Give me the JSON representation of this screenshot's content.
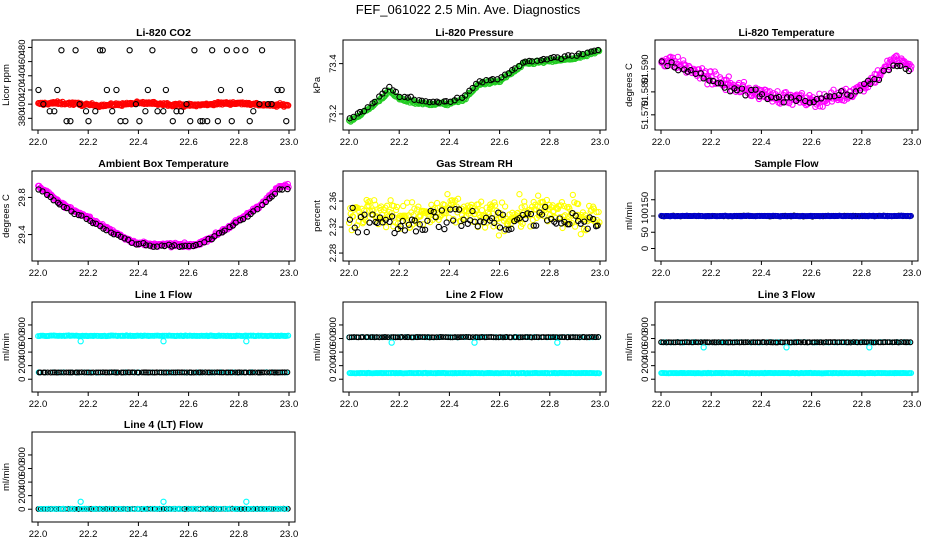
{
  "figure_title": "FEF_061022  2.5 Min. Ave. Diagnostics",
  "colors": {
    "red": "#ff0000",
    "black": "#000000",
    "green": "#22cc22",
    "magenta": "#ff00ff",
    "yellow": "#ffff00",
    "blue": "#0000cc",
    "cyan": "#00ffff"
  },
  "chart_data": [
    {
      "type": "scatter",
      "title": "Li-820 CO2",
      "xlabel": "",
      "ylabel": "Licor ppm",
      "xlim": [
        22.0,
        23.0
      ],
      "ylim": [
        372,
        482
      ],
      "xticks": [
        "22.0",
        "22.2",
        "22.4",
        "22.6",
        "22.8",
        "23.0"
      ],
      "yticks": [
        {
          "v": 380,
          "l": "380"
        },
        {
          "v": 400,
          "l": "400"
        },
        {
          "v": 420,
          "l": "420"
        },
        {
          "v": 440,
          "l": "440"
        },
        {
          "v": 460,
          "l": "460"
        },
        {
          "v": 480,
          "l": "480"
        }
      ],
      "series": [
        {
          "name": "CO2 (red)",
          "color": "#ff0000",
          "kind": "band",
          "base": 400,
          "noise": 2,
          "wave": 1.5,
          "n": 300,
          "size": 2.6
        },
        {
          "name": "CO2 (black, scattered)",
          "color": "#000000",
          "kind": "levels",
          "levels": [
            376,
            390,
            400,
            420,
            476
          ],
          "n": 55,
          "size": 2.6
        }
      ]
    },
    {
      "type": "scatter",
      "title": "Li-820 Pressure",
      "xlabel": "",
      "ylabel": "kPa",
      "xlim": [
        22.0,
        23.0
      ],
      "ylim": [
        73.16,
        73.47
      ],
      "xticks": [
        "22.0",
        "22.2",
        "22.4",
        "22.6",
        "22.8",
        "23.0"
      ],
      "yticks": [
        {
          "v": 73.2,
          "l": "73.2"
        },
        {
          "v": 73.4,
          "l": "73.4"
        }
      ],
      "series": [
        {
          "name": "Pressure (green)",
          "color": "#22cc22",
          "kind": "curve",
          "pts": [
            [
              22.0,
              73.17
            ],
            [
              22.08,
              73.22
            ],
            [
              22.16,
              73.29
            ],
            [
              22.2,
              73.26
            ],
            [
              22.3,
              73.24
            ],
            [
              22.4,
              73.24
            ],
            [
              22.46,
              73.26
            ],
            [
              22.52,
              73.32
            ],
            [
              22.6,
              73.33
            ],
            [
              22.7,
              73.4
            ],
            [
              22.8,
              73.41
            ],
            [
              22.9,
              73.42
            ],
            [
              23.0,
              73.45
            ]
          ],
          "noise": 0.006,
          "n": 240,
          "size": 2.6
        },
        {
          "name": "Pressure (black)",
          "color": "#000000",
          "kind": "curve",
          "pts": [
            [
              22.0,
              73.18
            ],
            [
              22.08,
              73.23
            ],
            [
              22.16,
              73.31
            ],
            [
              22.2,
              73.27
            ],
            [
              22.3,
              73.25
            ],
            [
              22.4,
              73.25
            ],
            [
              22.46,
              73.27
            ],
            [
              22.52,
              73.33
            ],
            [
              22.6,
              73.34
            ],
            [
              22.7,
              73.41
            ],
            [
              22.8,
              73.42
            ],
            [
              22.9,
              73.43
            ],
            [
              23.0,
              73.46
            ]
          ],
          "noise": 0.006,
          "n": 70,
          "size": 2.6
        }
      ]
    },
    {
      "type": "scatter",
      "title": "Li-820 Temperature",
      "xlabel": "",
      "ylabel": "degrees C",
      "xlim": [
        22.0,
        23.0
      ],
      "ylim": [
        51.566,
        51.6
      ],
      "xticks": [
        "22.0",
        "22.2",
        "22.4",
        "22.6",
        "22.8",
        "23.0"
      ],
      "yticks": [
        {
          "v": 51.57,
          "l": "51.570"
        },
        {
          "v": 51.58,
          "l": "51.580"
        },
        {
          "v": 51.59,
          "l": "51.590"
        }
      ],
      "series": [
        {
          "name": "Temperature (magenta)",
          "color": "#ff00ff",
          "kind": "curve",
          "pts": [
            [
              22.0,
              51.594
            ],
            [
              22.05,
              51.593
            ],
            [
              22.15,
              51.588
            ],
            [
              22.3,
              51.582
            ],
            [
              22.45,
              51.578
            ],
            [
              22.6,
              51.576
            ],
            [
              22.75,
              51.579
            ],
            [
              22.85,
              51.586
            ],
            [
              22.93,
              51.594
            ],
            [
              23.0,
              51.591
            ]
          ],
          "noise": 0.0028,
          "n": 300,
          "size": 2.6
        },
        {
          "name": "Temperature (black)",
          "color": "#000000",
          "kind": "curve",
          "pts": [
            [
              22.0,
              51.593
            ],
            [
              22.05,
              51.592
            ],
            [
              22.15,
              51.587
            ],
            [
              22.3,
              51.581
            ],
            [
              22.45,
              51.578
            ],
            [
              22.6,
              51.576
            ],
            [
              22.75,
              51.579
            ],
            [
              22.85,
              51.585
            ],
            [
              22.93,
              51.592
            ],
            [
              23.0,
              51.59
            ]
          ],
          "noise": 0.002,
          "n": 60,
          "size": 2.6
        }
      ]
    },
    {
      "type": "scatter",
      "title": "Ambient Box Temperature",
      "xlabel": "",
      "ylabel": "degrees C",
      "xlim": [
        22.0,
        23.0
      ],
      "ylim": [
        29.18,
        30.02
      ],
      "xticks": [
        "22.0",
        "22.2",
        "22.4",
        "22.6",
        "22.8",
        "23.0"
      ],
      "yticks": [
        {
          "v": 29.4,
          "l": "29.4"
        },
        {
          "v": 29.8,
          "l": "29.8"
        }
      ],
      "series": [
        {
          "name": "Box temp (magenta)",
          "color": "#ff00ff",
          "kind": "curve",
          "pts": [
            [
              22.0,
              29.93
            ],
            [
              22.1,
              29.72
            ],
            [
              22.2,
              29.58
            ],
            [
              22.3,
              29.43
            ],
            [
              22.38,
              29.32
            ],
            [
              22.45,
              29.29
            ],
            [
              22.55,
              29.29
            ],
            [
              22.62,
              29.28
            ],
            [
              22.7,
              29.38
            ],
            [
              22.8,
              29.55
            ],
            [
              22.9,
              29.75
            ],
            [
              22.96,
              29.91
            ],
            [
              23.0,
              29.93
            ]
          ],
          "noise": 0.02,
          "n": 300,
          "size": 2.6
        },
        {
          "name": "Box temp (black)",
          "color": "#000000",
          "kind": "curve",
          "pts": [
            [
              22.0,
              29.9
            ],
            [
              22.1,
              29.7
            ],
            [
              22.2,
              29.56
            ],
            [
              22.3,
              29.42
            ],
            [
              22.38,
              29.31
            ],
            [
              22.45,
              29.28
            ],
            [
              22.55,
              29.28
            ],
            [
              22.62,
              29.27
            ],
            [
              22.7,
              29.37
            ],
            [
              22.8,
              29.54
            ],
            [
              22.9,
              29.73
            ],
            [
              22.96,
              29.89
            ],
            [
              23.0,
              29.9
            ]
          ],
          "noise": 0.012,
          "n": 70,
          "size": 2.6
        }
      ]
    },
    {
      "type": "scatter",
      "title": "Gas Stream RH",
      "xlabel": "",
      "ylabel": "percent",
      "xlim": [
        22.0,
        23.0
      ],
      "ylim": [
        2.277,
        2.397
      ],
      "xticks": [
        "22.0",
        "22.2",
        "22.4",
        "22.6",
        "22.8",
        "23.0"
      ],
      "yticks": [
        {
          "v": 2.28,
          "l": "2.28"
        },
        {
          "v": 2.32,
          "l": "2.32"
        },
        {
          "v": 2.36,
          "l": "2.36"
        }
      ],
      "series": [
        {
          "name": "RH (yellow)",
          "color": "#ffff00",
          "kind": "band",
          "base": 2.34,
          "noise": 0.022,
          "wave": 0.004,
          "n": 320,
          "size": 2.6
        },
        {
          "name": "RH (black)",
          "color": "#000000",
          "kind": "band",
          "base": 2.33,
          "noise": 0.018,
          "wave": 0.003,
          "n": 90,
          "size": 2.6
        }
      ]
    },
    {
      "type": "scatter",
      "title": "Sample Flow",
      "xlabel": "",
      "ylabel": "ml/min",
      "xlim": [
        22.0,
        23.0
      ],
      "ylim": [
        -20,
        220
      ],
      "xticks": [
        "22.0",
        "22.2",
        "22.4",
        "22.6",
        "22.8",
        "23.0"
      ],
      "yticks": [
        {
          "v": 0,
          "l": "0"
        },
        {
          "v": 50,
          "l": "50"
        },
        {
          "v": 100,
          "l": "100"
        },
        {
          "v": 150,
          "l": "150"
        }
      ],
      "series": [
        {
          "name": "Sample flow (black)",
          "color": "#000000",
          "kind": "band",
          "base": 100,
          "noise": 1.5,
          "wave": 0,
          "n": 110,
          "size": 2.4
        },
        {
          "name": "Sample flow (blue)",
          "color": "#0000cc",
          "kind": "band",
          "base": 100,
          "noise": 1,
          "wave": 0,
          "n": 200,
          "size": 2.4
        }
      ]
    },
    {
      "type": "scatter",
      "title": "Line 1 Flow",
      "xlabel": "",
      "ylabel": "ml/min",
      "xlim": [
        22.0,
        23.0
      ],
      "ylim": [
        -100,
        1050
      ],
      "xticks": [
        "22.0",
        "22.2",
        "22.4",
        "22.6",
        "22.8",
        "23.0"
      ],
      "yticks": [
        {
          "v": 0,
          "l": "0"
        },
        {
          "v": 200,
          "l": "200"
        },
        {
          "v": 400,
          "l": "400"
        },
        {
          "v": 600,
          "l": "600"
        },
        {
          "v": 800,
          "l": "800"
        }
      ],
      "series": [
        {
          "name": "Line 1 (cyan high)",
          "color": "#00ffff",
          "kind": "band",
          "base": 640,
          "noise": 5,
          "wave": 0,
          "n": 200,
          "size": 2.4
        },
        {
          "name": "Line 1 (cyan low)",
          "color": "#00ffff",
          "kind": "band",
          "base": 100,
          "noise": 3,
          "wave": 0,
          "n": 40,
          "size": 2.4
        },
        {
          "name": "Line 1 (black)",
          "color": "#000000",
          "kind": "band",
          "base": 100,
          "noise": 2,
          "wave": 0,
          "n": 110,
          "size": 2.4
        },
        {
          "name": "Line 1 dips",
          "color": "#00ffff",
          "kind": "points",
          "pts": [
            [
              22.17,
              560
            ],
            [
              22.5,
              560
            ],
            [
              22.83,
              560
            ]
          ],
          "size": 2.6
        }
      ]
    },
    {
      "type": "scatter",
      "title": "Line 2 Flow",
      "xlabel": "",
      "ylabel": "ml/min",
      "xlim": [
        22.0,
        23.0
      ],
      "ylim": [
        -100,
        1050
      ],
      "xticks": [
        "22.0",
        "22.2",
        "22.4",
        "22.6",
        "22.8",
        "23.0"
      ],
      "yticks": [
        {
          "v": 0,
          "l": "0"
        },
        {
          "v": 200,
          "l": "200"
        },
        {
          "v": 400,
          "l": "400"
        },
        {
          "v": 600,
          "l": "600"
        },
        {
          "v": 800,
          "l": "800"
        }
      ],
      "series": [
        {
          "name": "Line 2 (cyan high)",
          "color": "#00ffff",
          "kind": "band",
          "base": 620,
          "noise": 3,
          "wave": 0,
          "n": 60,
          "size": 2.4
        },
        {
          "name": "Line 2 (black)",
          "color": "#000000",
          "kind": "band",
          "base": 620,
          "noise": 3,
          "wave": 0,
          "n": 110,
          "size": 2.4
        },
        {
          "name": "Line 2 (cyan low)",
          "color": "#00ffff",
          "kind": "band",
          "base": 90,
          "noise": 3,
          "wave": 0,
          "n": 220,
          "size": 2.4
        },
        {
          "name": "Line 2 dips",
          "color": "#00ffff",
          "kind": "points",
          "pts": [
            [
              22.17,
              540
            ],
            [
              22.5,
              540
            ],
            [
              22.83,
              540
            ]
          ],
          "size": 2.6
        }
      ]
    },
    {
      "type": "scatter",
      "title": "Line 3 Flow",
      "xlabel": "",
      "ylabel": "ml/min",
      "xlim": [
        22.0,
        23.0
      ],
      "ylim": [
        -100,
        1050
      ],
      "xticks": [
        "22.0",
        "22.2",
        "22.4",
        "22.6",
        "22.8",
        "23.0"
      ],
      "yticks": [
        {
          "v": 0,
          "l": "0"
        },
        {
          "v": 200,
          "l": "200"
        },
        {
          "v": 400,
          "l": "400"
        },
        {
          "v": 600,
          "l": "600"
        },
        {
          "v": 800,
          "l": "800"
        }
      ],
      "series": [
        {
          "name": "Line 3 (cyan high)",
          "color": "#00ffff",
          "kind": "band",
          "base": 545,
          "noise": 3,
          "wave": 0,
          "n": 60,
          "size": 2.4
        },
        {
          "name": "Line 3 (black)",
          "color": "#000000",
          "kind": "band",
          "base": 545,
          "noise": 3,
          "wave": 0,
          "n": 110,
          "size": 2.4
        },
        {
          "name": "Line 3 (cyan low)",
          "color": "#00ffff",
          "kind": "band",
          "base": 90,
          "noise": 3,
          "wave": 0,
          "n": 220,
          "size": 2.4
        },
        {
          "name": "Line 3 dips",
          "color": "#00ffff",
          "kind": "points",
          "pts": [
            [
              22.17,
              470
            ],
            [
              22.5,
              470
            ],
            [
              22.83,
              470
            ]
          ],
          "size": 2.6
        }
      ]
    },
    {
      "type": "scatter",
      "title": "Line 4 (LT) Flow",
      "xlabel": "",
      "ylabel": "ml/min",
      "xlim": [
        22.0,
        23.0
      ],
      "ylim": [
        -100,
        1050
      ],
      "xticks": [
        "22.0",
        "22.2",
        "22.4",
        "22.6",
        "22.8",
        "23.0"
      ],
      "yticks": [
        {
          "v": 0,
          "l": "0"
        },
        {
          "v": 200,
          "l": "200"
        },
        {
          "v": 400,
          "l": "400"
        },
        {
          "v": 600,
          "l": "600"
        },
        {
          "v": 800,
          "l": "800"
        }
      ],
      "series": [
        {
          "name": "Line 4 (black)",
          "color": "#000000",
          "kind": "band",
          "base": 5,
          "noise": 2,
          "wave": 0,
          "n": 110,
          "size": 2.4
        },
        {
          "name": "Line 4 (cyan)",
          "color": "#00ffff",
          "kind": "band",
          "base": 5,
          "noise": 2,
          "wave": 0,
          "n": 80,
          "size": 2.4
        },
        {
          "name": "Line 4 spikes",
          "color": "#00ffff",
          "kind": "points",
          "pts": [
            [
              22.17,
              110
            ],
            [
              22.5,
              110
            ],
            [
              22.83,
              110
            ]
          ],
          "size": 2.6
        }
      ]
    }
  ]
}
